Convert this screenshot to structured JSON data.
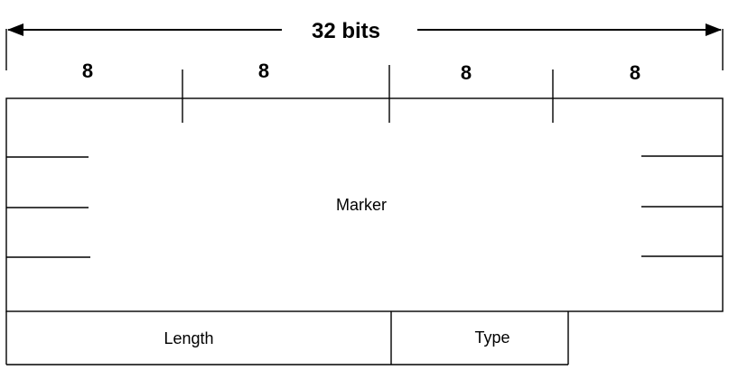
{
  "width_label": "32 bits",
  "byte_labels": [
    "8",
    "8",
    "8",
    "8"
  ],
  "fields": {
    "marker": "Marker",
    "length": "Length",
    "type": "Type"
  },
  "colors": {
    "stroke": "#000000",
    "background": "#ffffff"
  }
}
